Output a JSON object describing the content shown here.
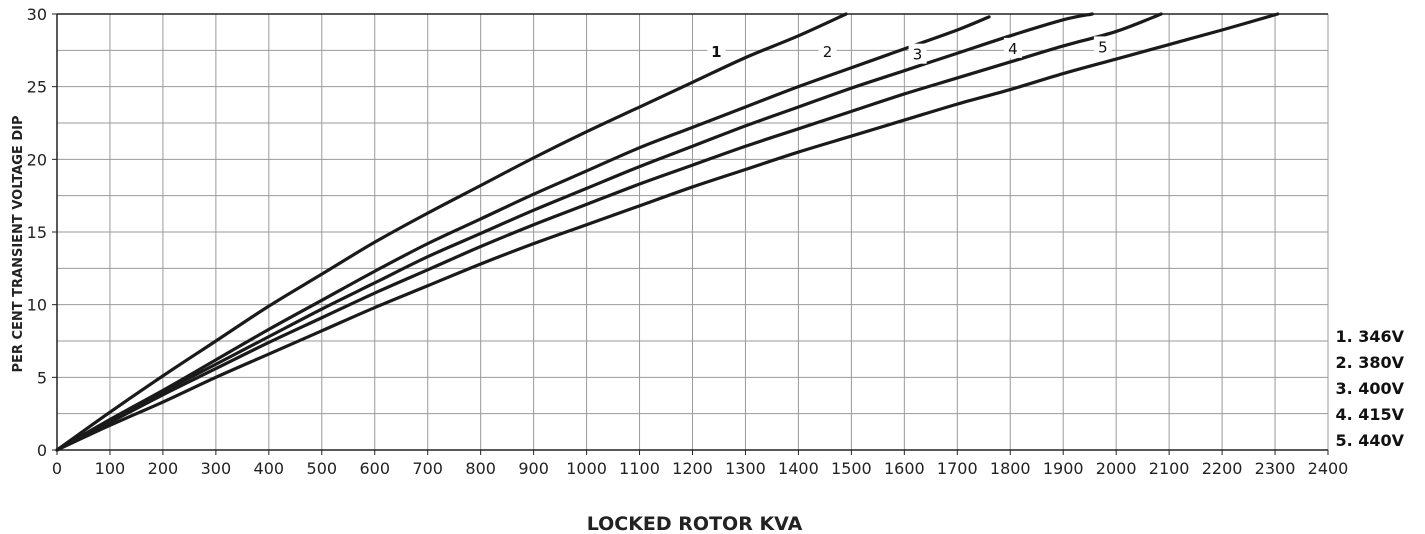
{
  "chart_data": {
    "type": "line",
    "title": "",
    "xlabel": "LOCKED ROTOR KVA",
    "ylabel": "PER CENT TRANSIENT VOLTAGE DIP",
    "xlim": [
      0,
      2400
    ],
    "ylim": [
      0,
      30
    ],
    "x_ticks": [
      "0",
      "100",
      "200",
      "300",
      "400",
      "500",
      "600",
      "700",
      "800",
      "900",
      "1000",
      "1100",
      "1200",
      "1300",
      "1400",
      "1500",
      "1600",
      "1700",
      "1800",
      "1900",
      "2000",
      "2100",
      "2200",
      "2300",
      "2400"
    ],
    "y_ticks": [
      "0",
      "5",
      "10",
      "15",
      "20",
      "25",
      "30"
    ],
    "grid": true,
    "legend_position": "right-bottom",
    "legend": [
      "1. 346V",
      "2. 380V",
      "3. 400V",
      "4. 415V",
      "5. 440V"
    ],
    "series": [
      {
        "label": "1",
        "x": [
          0,
          100,
          200,
          300,
          400,
          500,
          600,
          700,
          800,
          900,
          1000,
          1100,
          1200,
          1300,
          1400,
          1490
        ],
        "y": [
          0,
          2.6,
          5.1,
          7.5,
          9.9,
          12.1,
          14.3,
          16.3,
          18.2,
          20.1,
          21.9,
          23.6,
          25.3,
          27.0,
          28.5,
          30.0
        ]
      },
      {
        "label": "2",
        "x": [
          0,
          100,
          200,
          300,
          400,
          500,
          600,
          700,
          800,
          900,
          1000,
          1100,
          1200,
          1300,
          1400,
          1500,
          1600,
          1700,
          1760
        ],
        "y": [
          0,
          2.1,
          4.1,
          6.2,
          8.3,
          10.3,
          12.3,
          14.2,
          15.9,
          17.6,
          19.2,
          20.8,
          22.2,
          23.6,
          25.0,
          26.3,
          27.6,
          28.9,
          29.8
        ]
      },
      {
        "label": "3",
        "x": [
          0,
          100,
          200,
          300,
          400,
          500,
          600,
          700,
          800,
          900,
          1000,
          1100,
          1200,
          1300,
          1400,
          1500,
          1600,
          1700,
          1800,
          1900,
          1955
        ],
        "y": [
          0,
          2.0,
          4.0,
          5.9,
          7.8,
          9.7,
          11.5,
          13.3,
          14.9,
          16.5,
          18.0,
          19.5,
          20.9,
          22.3,
          23.6,
          24.9,
          26.1,
          27.3,
          28.5,
          29.6,
          30.0
        ]
      },
      {
        "label": "4",
        "x": [
          0,
          100,
          200,
          300,
          400,
          500,
          600,
          700,
          800,
          900,
          1000,
          1100,
          1200,
          1300,
          1400,
          1500,
          1600,
          1700,
          1800,
          1900,
          2000,
          2085
        ],
        "y": [
          0,
          1.9,
          3.8,
          5.6,
          7.4,
          9.1,
          10.8,
          12.4,
          14.0,
          15.5,
          16.9,
          18.3,
          19.6,
          20.9,
          22.1,
          23.3,
          24.5,
          25.6,
          26.7,
          27.8,
          28.8,
          30.0
        ]
      },
      {
        "label": "5",
        "x": [
          0,
          100,
          200,
          300,
          400,
          500,
          600,
          700,
          800,
          900,
          1000,
          1100,
          1200,
          1300,
          1400,
          1500,
          1600,
          1700,
          1800,
          1900,
          2000,
          2100,
          2200,
          2305
        ],
        "y": [
          0,
          1.7,
          3.3,
          5.0,
          6.6,
          8.2,
          9.8,
          11.3,
          12.8,
          14.2,
          15.5,
          16.8,
          18.1,
          19.3,
          20.5,
          21.6,
          22.7,
          23.8,
          24.8,
          25.9,
          26.9,
          27.9,
          28.9,
          30.0
        ]
      }
    ],
    "curve_labels": [
      {
        "text": "1",
        "x": 1245,
        "y": 27.4
      },
      {
        "text": "2",
        "x": 1455,
        "y": 27.4
      },
      {
        "text": "3",
        "x": 1625,
        "y": 27.2
      },
      {
        "text": "4",
        "x": 1805,
        "y": 27.6
      },
      {
        "text": "5",
        "x": 1975,
        "y": 27.7
      }
    ]
  }
}
